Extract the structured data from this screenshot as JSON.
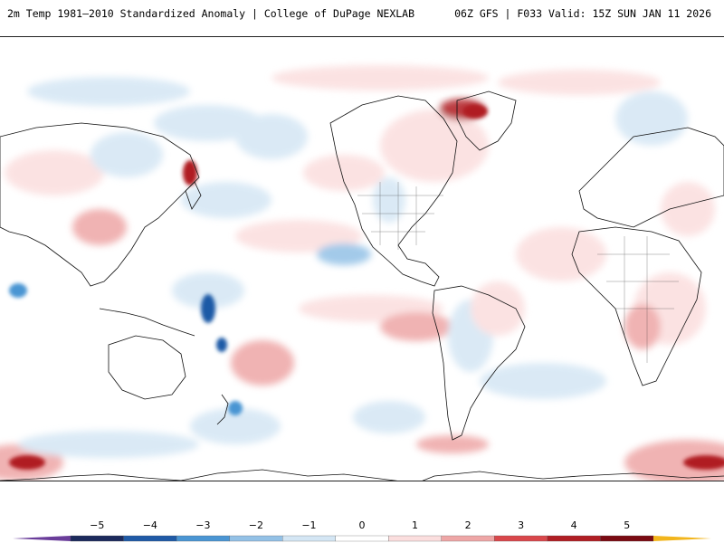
{
  "header": {
    "title": "2m Temp 1981–2010 Standardized Anomaly | College of DuPage NEXLAB",
    "run_info": "06Z GFS | F033 Valid: 15Z SUN JAN 11 2026"
  },
  "colorbar": {
    "labels": [
      "-5",
      "-4",
      "-3",
      "-2",
      "-1",
      "0",
      "1",
      "2",
      "3",
      "4",
      "5"
    ],
    "colors": [
      "#1c2a5c",
      "#1f5aa6",
      "#4a95d3",
      "#93c1e6",
      "#d4e6f4",
      "#ffffff",
      "#fbdede",
      "#eea6a6",
      "#d9474b",
      "#b01e24",
      "#7a0a12"
    ],
    "low_end_color": "#6a3d9a",
    "high_end_color": "#f2b51c"
  },
  "map": {
    "projection": "equirectangular",
    "center": "Pacific",
    "anomaly_colors": {
      "strong_warm": "#b01e24",
      "moderate_warm": "#eea6a6",
      "weak_warm": "#fbdede",
      "weak_cool": "#d4e6f4",
      "moderate_cool": "#93c1e6",
      "strong_cool": "#1f5aa6"
    }
  }
}
